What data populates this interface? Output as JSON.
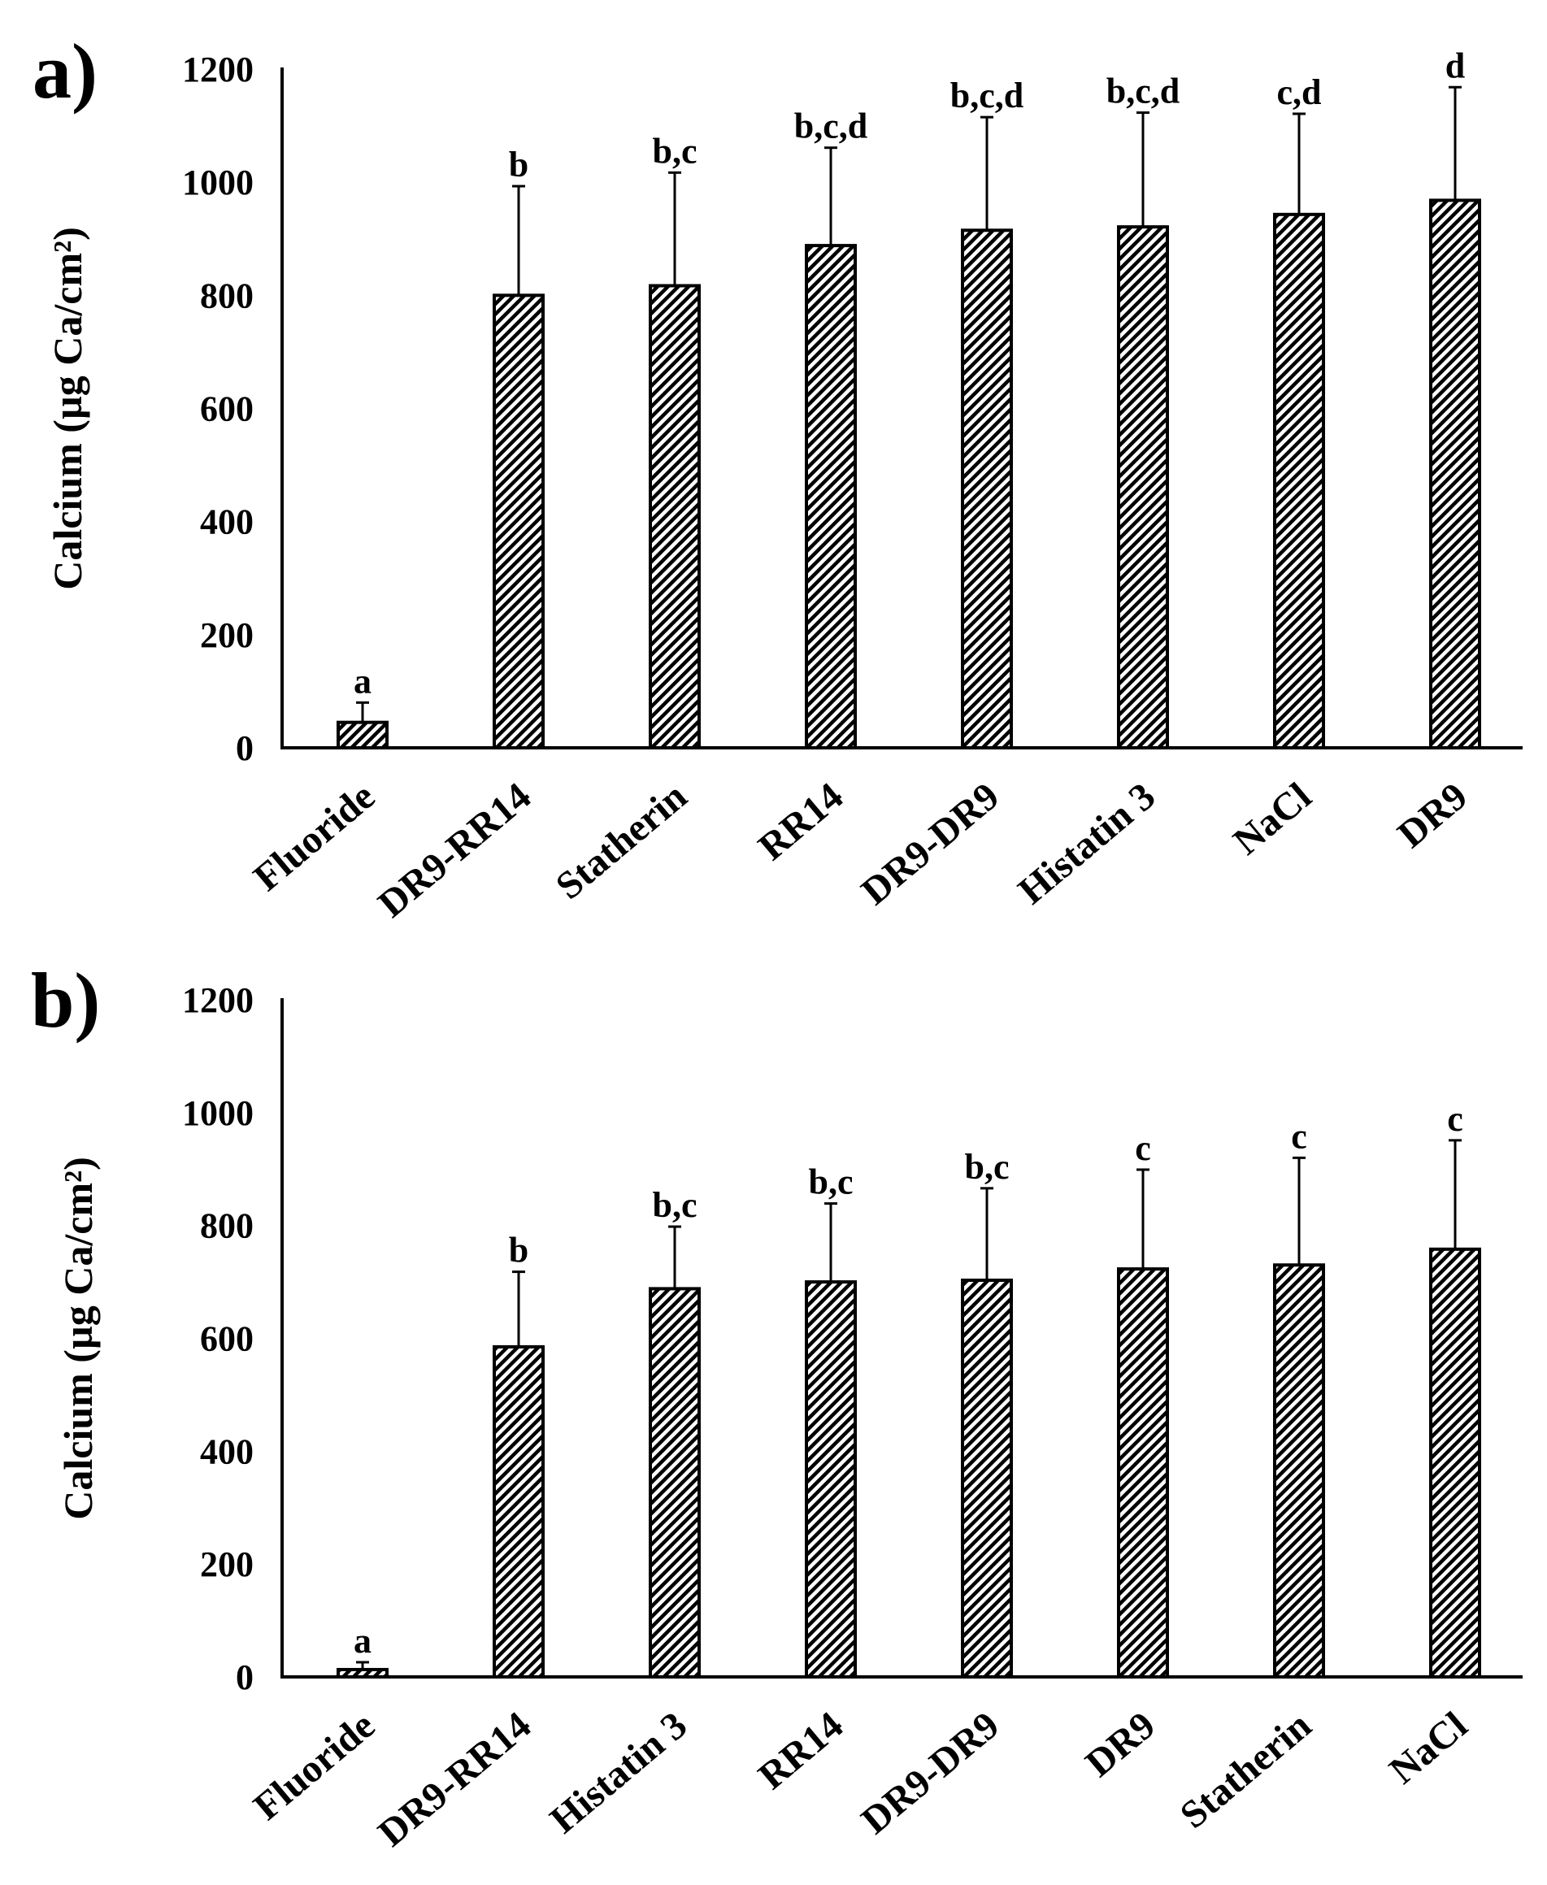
{
  "chart_data": [
    {
      "panel": "a)",
      "type": "bar",
      "ylabel": "Calcium  (µg Ca/cm²)",
      "ylim": [
        0,
        1200
      ],
      "yticks": [
        0,
        200,
        400,
        600,
        800,
        1000,
        1200
      ],
      "categories": [
        "Fluoride",
        "DR9-RR14",
        "Statherin",
        "RR14",
        "DR9-DR9",
        "Histatin 3",
        "NaCl",
        "DR9"
      ],
      "values": [
        45,
        800,
        817,
        888,
        915,
        921,
        943,
        968
      ],
      "errors": [
        35,
        193,
        200,
        173,
        200,
        202,
        178,
        200
      ],
      "significance": [
        "a",
        "b",
        "b,c",
        "b,c,d",
        "b,c,d",
        "b,c,d",
        "c,d",
        "d"
      ],
      "bar_pattern": "diagonal hatch"
    },
    {
      "panel": "b)",
      "type": "bar",
      "ylabel": "Calcium  (µg Ca/cm²)",
      "ylim": [
        0,
        1200
      ],
      "yticks": [
        0,
        200,
        400,
        600,
        800,
        1000,
        1200
      ],
      "categories": [
        "Fluoride",
        "DR9-RR14",
        "Histatin 3",
        "RR14",
        "DR9-DR9",
        "DR9",
        "Statherin",
        "NaCl"
      ],
      "values": [
        13,
        585,
        688,
        700,
        703,
        723,
        730,
        758
      ],
      "errors": [
        13,
        133,
        110,
        139,
        163,
        176,
        190,
        193
      ],
      "significance": [
        "a",
        "b",
        "b,c",
        "b,c",
        "b,c",
        "c",
        "c",
        "c"
      ],
      "bar_pattern": "diagonal hatch"
    }
  ]
}
